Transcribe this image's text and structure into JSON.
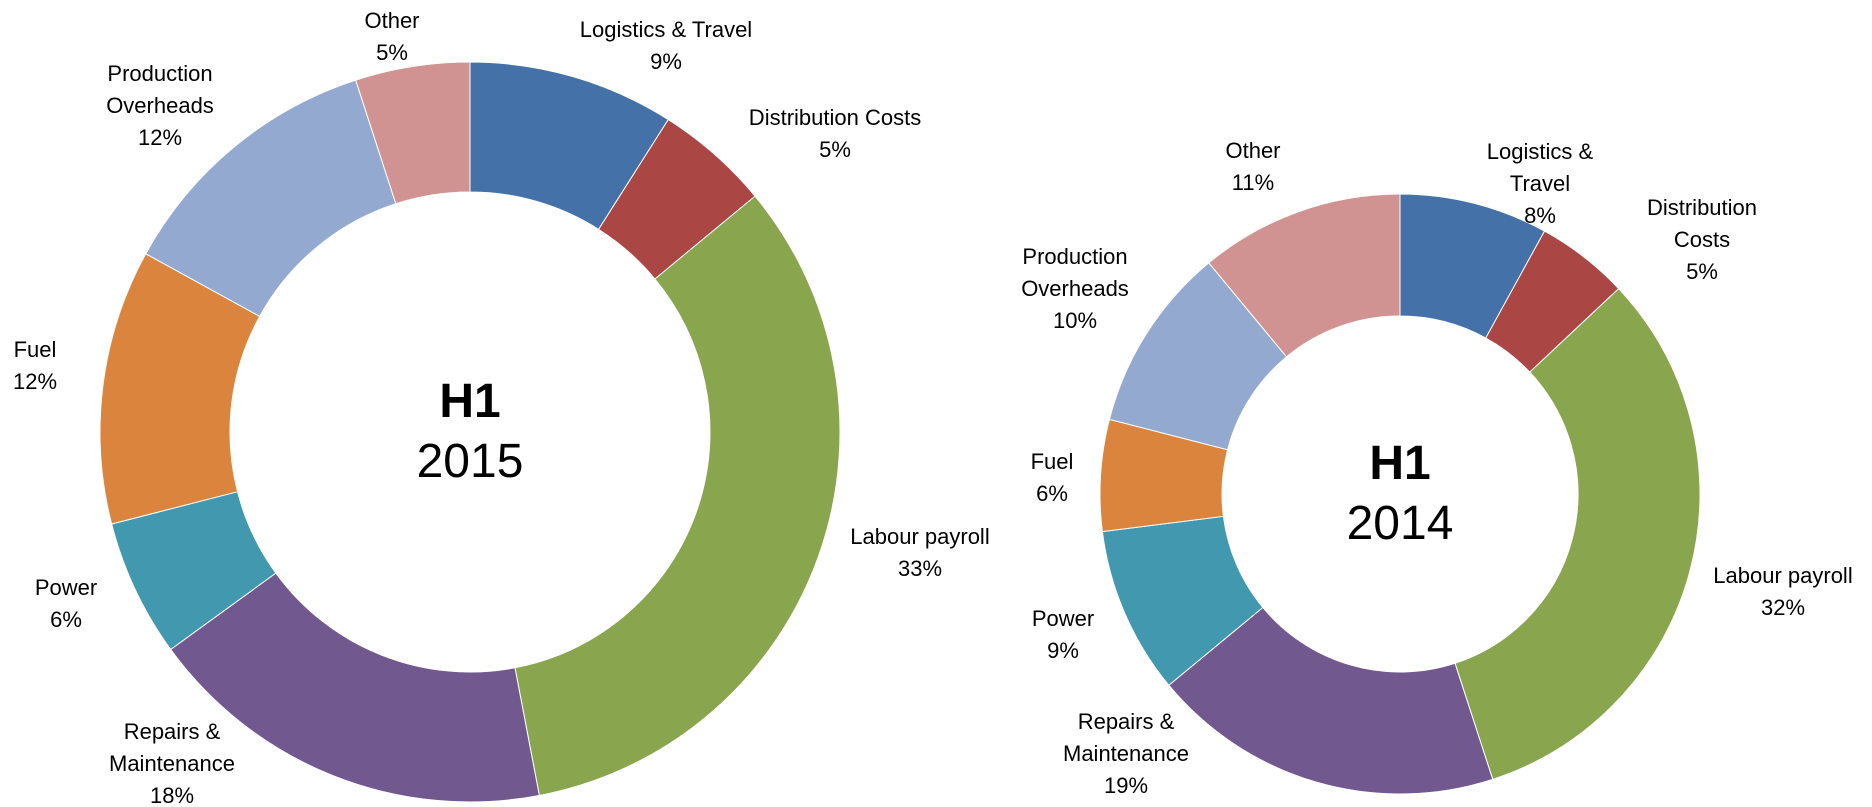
{
  "chart_data": [
    {
      "type": "donut",
      "title": "H1",
      "subtitle": "2015",
      "categories": [
        "Logistics & Travel",
        "Distribution Costs",
        "Labour payroll",
        "Repairs & Maintenance",
        "Power",
        "Fuel",
        "Production Overheads",
        "Other"
      ],
      "values": [
        9,
        5,
        33,
        18,
        6,
        12,
        12,
        5
      ],
      "value_labels": [
        "9%",
        "5%",
        "33%",
        "18%",
        "6%",
        "12%",
        "12%",
        "5%"
      ],
      "colors": [
        "#4472a8",
        "#aa4644",
        "#89a54e",
        "#71588f",
        "#4198af",
        "#db843d",
        "#93a9cf",
        "#d19392"
      ]
    },
    {
      "type": "donut",
      "title": "H1",
      "subtitle": "2014",
      "categories": [
        "Logistics & Travel",
        "Distribution Costs",
        "Labour payroll",
        "Repairs & Maintenance",
        "Power",
        "Fuel",
        "Production Overheads",
        "Other"
      ],
      "values": [
        8,
        5,
        32,
        19,
        9,
        6,
        10,
        11
      ],
      "value_labels": [
        "8%",
        "5%",
        "32%",
        "19%",
        "9%",
        "6%",
        "10%",
        "11%"
      ],
      "colors": [
        "#4472a8",
        "#aa4644",
        "#89a54e",
        "#71588f",
        "#4198af",
        "#db843d",
        "#93a9cf",
        "#d19392"
      ]
    }
  ]
}
